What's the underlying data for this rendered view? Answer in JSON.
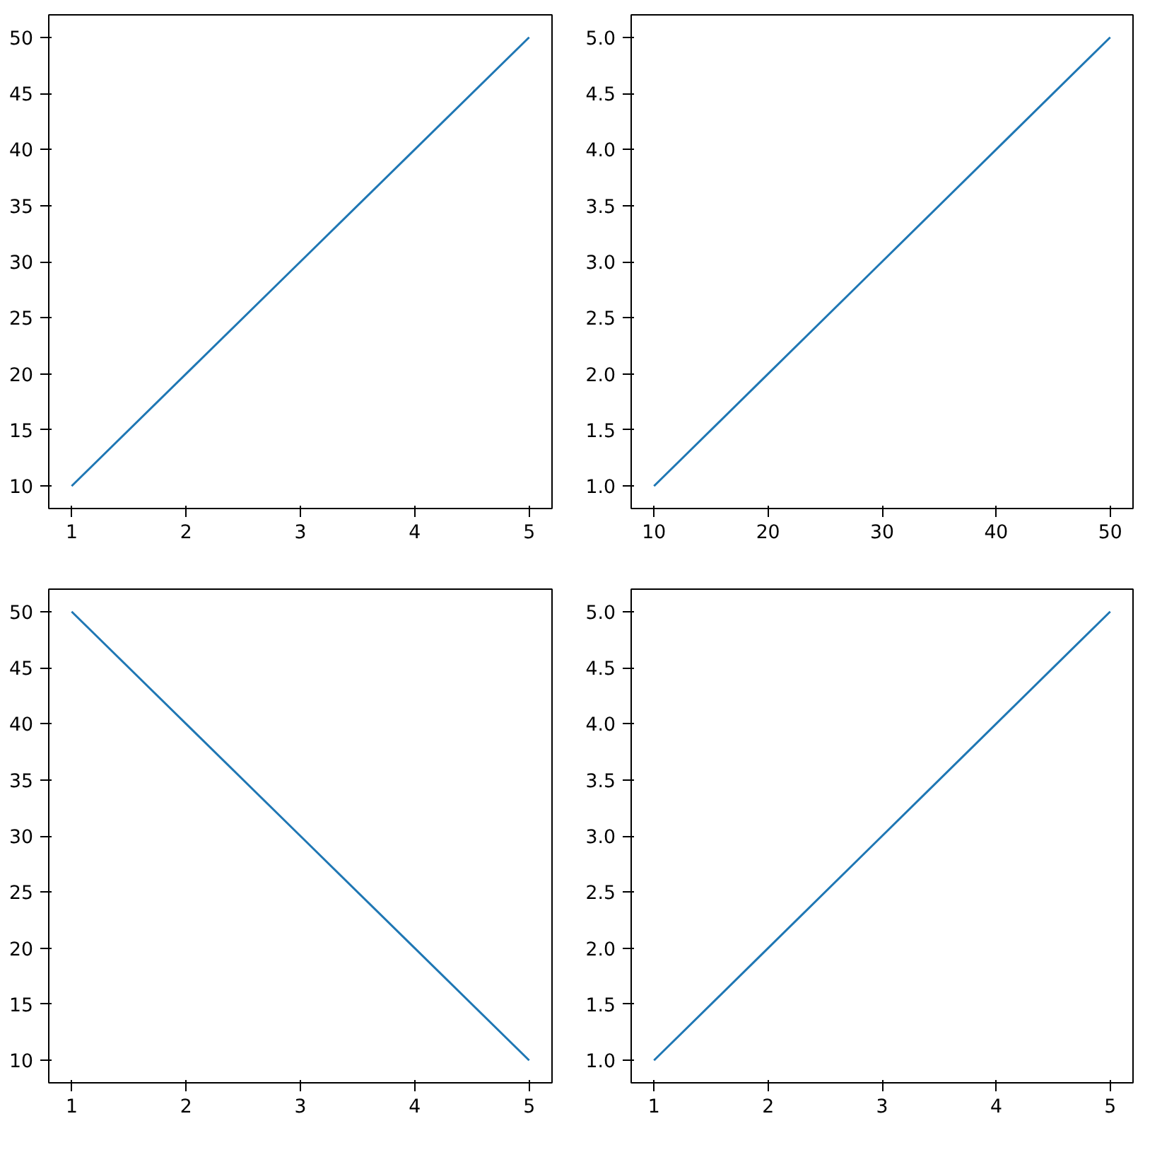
{
  "chart_data": [
    {
      "type": "line",
      "x": [
        1,
        2,
        3,
        4,
        5
      ],
      "series": [
        {
          "color": "#1f77b4",
          "values": [
            10,
            20,
            30,
            40,
            50
          ]
        }
      ],
      "xlim": [
        0.8,
        5.2
      ],
      "ylim": [
        8,
        52
      ],
      "xticks": [
        1,
        2,
        3,
        4,
        5
      ],
      "yticks": [
        10,
        15,
        20,
        25,
        30,
        35,
        40,
        45,
        50
      ],
      "grid": false
    },
    {
      "type": "line",
      "x": [
        10,
        20,
        30,
        40,
        50
      ],
      "series": [
        {
          "color": "#1f77b4",
          "values": [
            1,
            2,
            3,
            4,
            5
          ]
        }
      ],
      "xlim": [
        8,
        52
      ],
      "ylim": [
        0.8,
        5.2
      ],
      "xticks": [
        10,
        20,
        30,
        40,
        50
      ],
      "yticks": [
        {
          "value": 1,
          "label": "1.0"
        },
        1.5,
        {
          "value": 2,
          "label": "2.0"
        },
        2.5,
        {
          "value": 3,
          "label": "3.0"
        },
        3.5,
        {
          "value": 4,
          "label": "4.0"
        },
        4.5,
        {
          "value": 5,
          "label": "5.0"
        }
      ],
      "grid": false
    },
    {
      "type": "line",
      "x": [
        1,
        2,
        3,
        4,
        5
      ],
      "series": [
        {
          "color": "#1f77b4",
          "values": [
            50,
            40,
            30,
            20,
            10
          ]
        }
      ],
      "xlim": [
        0.8,
        5.2
      ],
      "ylim": [
        8,
        52
      ],
      "xticks": [
        1,
        2,
        3,
        4,
        5
      ],
      "yticks": [
        10,
        15,
        20,
        25,
        30,
        35,
        40,
        45,
        50
      ],
      "grid": false
    },
    {
      "type": "line",
      "x": [
        1,
        2,
        3,
        4,
        5
      ],
      "series": [
        {
          "color": "#1f77b4",
          "values": [
            1,
            2,
            3,
            4,
            5
          ]
        }
      ],
      "xlim": [
        0.8,
        5.2
      ],
      "ylim": [
        0.8,
        5.2
      ],
      "xticks": [
        1,
        2,
        3,
        4,
        5
      ],
      "yticks": [
        {
          "value": 1,
          "label": "1.0"
        },
        1.5,
        {
          "value": 2,
          "label": "2.0"
        },
        2.5,
        {
          "value": 3,
          "label": "3.0"
        },
        3.5,
        {
          "value": 4,
          "label": "4.0"
        },
        4.5,
        {
          "value": 5,
          "label": "5.0"
        }
      ],
      "grid": false
    }
  ]
}
